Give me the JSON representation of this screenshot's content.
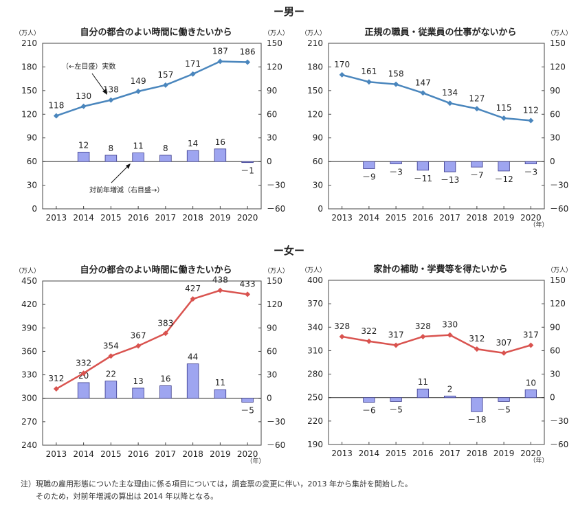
{
  "sections": {
    "male_title": "ー男ー",
    "female_title": "ー女ー"
  },
  "notes": {
    "line1": "注）現職の雇用形態についた主な理由に係る項目については，調査票の変更に伴い，2013 年から集計を開始した。",
    "line2": "そのため，対前年増減の算出は 2014 年以降となる。"
  },
  "colors": {
    "male_line": "#4a86bd",
    "female_line": "#d9534f",
    "bar_fill": "#9ea5f0",
    "bar_stroke": "#3a3a8a"
  },
  "chart_data": [
    {
      "type": "line+bar",
      "title": "自分の都合のよい時間に働きたいから",
      "left_unit": "（万人）",
      "right_unit": "（万人）",
      "year_unit": "",
      "categories": [
        "2013",
        "2014",
        "2015",
        "2016",
        "2017",
        "2018",
        "2019",
        "2020"
      ],
      "left_ylim": [
        0,
        210
      ],
      "left_ticks": [
        0,
        30,
        60,
        90,
        120,
        150,
        180,
        210
      ],
      "right_ylim": [
        -60,
        150
      ],
      "right_ticks": [
        -60,
        -30,
        0,
        30,
        60,
        90,
        120,
        150
      ],
      "series": [
        {
          "axis": "left",
          "kind": "line",
          "values": [
            118,
            130,
            138,
            149,
            157,
            171,
            187,
            186
          ]
        },
        {
          "axis": "right",
          "kind": "bar",
          "values": [
            null,
            12,
            8,
            11,
            8,
            14,
            16,
            -1
          ]
        }
      ],
      "value_labels": [
        "118",
        "130",
        "138",
        "149",
        "157",
        "171",
        "187",
        "186"
      ],
      "bar_labels": [
        "",
        "12",
        "8",
        "11",
        "8",
        "14",
        "16",
        "－1"
      ],
      "annotations": [
        "（←左目盛）実数",
        "対前年増減（右目盛→）"
      ]
    },
    {
      "type": "line+bar",
      "title": "正規の職員・従業員の仕事がないから",
      "left_unit": "（万人）",
      "right_unit": "（万人）",
      "year_unit": "（年）",
      "categories": [
        "2013",
        "2014",
        "2015",
        "2016",
        "2017",
        "2018",
        "2019",
        "2020"
      ],
      "left_ylim": [
        0,
        210
      ],
      "left_ticks": [
        0,
        30,
        60,
        90,
        120,
        150,
        180,
        210
      ],
      "right_ylim": [
        -60,
        150
      ],
      "right_ticks": [
        -60,
        -30,
        0,
        30,
        60,
        90,
        120,
        150
      ],
      "series": [
        {
          "axis": "left",
          "kind": "line",
          "values": [
            170,
            161,
            158,
            147,
            134,
            127,
            115,
            112
          ]
        },
        {
          "axis": "right",
          "kind": "bar",
          "values": [
            null,
            -9,
            -3,
            -11,
            -13,
            -7,
            -12,
            -3
          ]
        }
      ],
      "value_labels": [
        "170",
        "161",
        "158",
        "147",
        "134",
        "127",
        "115",
        "112"
      ],
      "bar_labels": [
        "",
        "－9",
        "－3",
        "－11",
        "－13",
        "－7",
        "－12",
        "－3"
      ],
      "annotations": []
    },
    {
      "type": "line+bar",
      "title": "自分の都合のよい時間に働きたいから",
      "left_unit": "（万人）",
      "right_unit": "（万人）",
      "year_unit": "（年）",
      "categories": [
        "2013",
        "2014",
        "2015",
        "2016",
        "2017",
        "2018",
        "2019",
        "2020"
      ],
      "left_ylim": [
        240,
        450
      ],
      "left_ticks": [
        240,
        270,
        300,
        330,
        360,
        390,
        420,
        450
      ],
      "right_ylim": [
        -60,
        150
      ],
      "right_ticks": [
        -60,
        -30,
        0,
        30,
        60,
        90,
        120,
        150
      ],
      "series": [
        {
          "axis": "left",
          "kind": "line",
          "values": [
            312,
            332,
            354,
            367,
            383,
            427,
            438,
            433
          ]
        },
        {
          "axis": "right",
          "kind": "bar",
          "values": [
            null,
            20,
            22,
            13,
            16,
            44,
            11,
            -5
          ]
        }
      ],
      "value_labels": [
        "312",
        "332",
        "354",
        "367",
        "383",
        "427",
        "438",
        "433"
      ],
      "bar_labels": [
        "",
        "20",
        "22",
        "13",
        "16",
        "44",
        "11",
        "－5"
      ],
      "annotations": []
    },
    {
      "type": "line+bar",
      "title": "家計の補助・学費等を得たいから",
      "left_unit": "（万人）",
      "right_unit": "（万人）",
      "year_unit": "（年）",
      "categories": [
        "2013",
        "2014",
        "2015",
        "2016",
        "2017",
        "2018",
        "2019",
        "2020"
      ],
      "left_ylim": [
        190,
        400
      ],
      "left_ticks": [
        190,
        220,
        250,
        280,
        310,
        340,
        370,
        400
      ],
      "right_ylim": [
        -60,
        150
      ],
      "right_ticks": [
        -60,
        -30,
        0,
        30,
        60,
        90,
        120,
        150
      ],
      "series": [
        {
          "axis": "left",
          "kind": "line",
          "values": [
            328,
            322,
            317,
            328,
            330,
            312,
            307,
            317
          ]
        },
        {
          "axis": "right",
          "kind": "bar",
          "values": [
            null,
            -6,
            -5,
            11,
            2,
            -18,
            -5,
            10
          ]
        }
      ],
      "value_labels": [
        "328",
        "322",
        "317",
        "328",
        "330",
        "312",
        "307",
        "317"
      ],
      "bar_labels": [
        "",
        "－6",
        "－5",
        "11",
        "2",
        "－18",
        "－5",
        "10"
      ],
      "annotations": []
    }
  ]
}
